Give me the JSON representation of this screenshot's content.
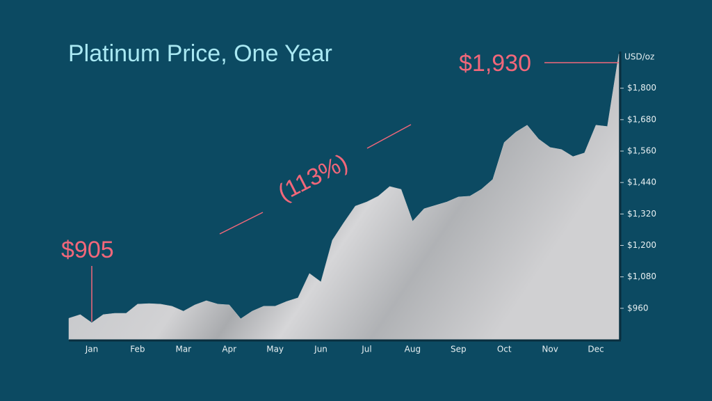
{
  "chart_data": {
    "type": "area",
    "title": "Platinum Price, One Year",
    "y_axis_label": "USD/oz",
    "annotations": [
      "$905",
      "(113%)",
      "$1,930"
    ],
    "color": "#c9c9cb",
    "categories": [
      null,
      null,
      "Jan",
      null,
      null,
      null,
      "Feb",
      null,
      null,
      null,
      "Mar",
      null,
      null,
      null,
      "Apr",
      null,
      null,
      null,
      "May",
      null,
      null,
      null,
      "Jun",
      null,
      null,
      null,
      "Jul",
      null,
      null,
      null,
      "Aug",
      null,
      null,
      null,
      "Sep",
      null,
      null,
      null,
      "Oct",
      null,
      null,
      null,
      "Nov",
      null,
      null,
      null,
      "Dec",
      null,
      null
    ],
    "values": [
      922,
      936,
      905,
      936,
      941,
      941,
      976,
      978,
      976,
      968,
      949,
      973,
      989,
      976,
      973,
      920,
      949,
      968,
      968,
      986,
      1000,
      1093,
      1061,
      1220,
      1287,
      1350,
      1366,
      1388,
      1425,
      1414,
      1292,
      1340,
      1353,
      1366,
      1385,
      1388,
      1414,
      1452,
      1593,
      1632,
      1659,
      1606,
      1574,
      1566,
      1539,
      1553,
      1659,
      1654,
      1930
    ],
    "ylim": [
      840,
      1940
    ],
    "yticks": [
      {
        "value": 960,
        "label": "$960"
      },
      {
        "value": 1080,
        "label": "$1,080"
      },
      {
        "value": 1200,
        "label": "$1,200"
      },
      {
        "value": 1320,
        "label": "$1,320"
      },
      {
        "value": 1440,
        "label": "$1,440"
      },
      {
        "value": 1560,
        "label": "$1,560"
      },
      {
        "value": 1680,
        "label": "$1,680"
      },
      {
        "value": 1800,
        "label": "$1,800"
      }
    ]
  }
}
